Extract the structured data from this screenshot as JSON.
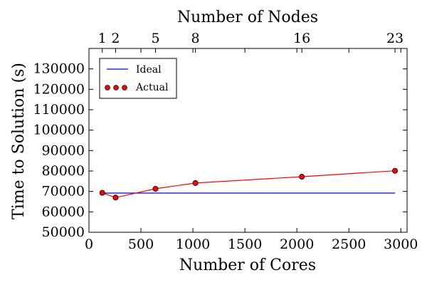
{
  "chart_data": {
    "type": "line",
    "xlabel": "Number of Cores",
    "ylabel": "Time to Solution (s)",
    "top_xlabel": "Number of Nodes",
    "xlim": [
      0,
      3060
    ],
    "ylim": [
      50000,
      140000
    ],
    "x_ticks": [
      {
        "value": 0,
        "label": "0"
      },
      {
        "value": 500,
        "label": "500"
      },
      {
        "value": 1000,
        "label": "1000"
      },
      {
        "value": 1500,
        "label": "1500"
      },
      {
        "value": 2000,
        "label": "2000"
      },
      {
        "value": 2500,
        "label": "2500"
      },
      {
        "value": 3000,
        "label": "3000"
      }
    ],
    "y_ticks": [
      {
        "value": 50000,
        "label": "50000"
      },
      {
        "value": 60000,
        "label": "60000"
      },
      {
        "value": 70000,
        "label": "70000"
      },
      {
        "value": 80000,
        "label": "80000"
      },
      {
        "value": 90000,
        "label": "90000"
      },
      {
        "value": 100000,
        "label": "100000"
      },
      {
        "value": 110000,
        "label": "110000"
      },
      {
        "value": 120000,
        "label": "120000"
      },
      {
        "value": 130000,
        "label": "130000"
      }
    ],
    "top_ticks": [
      {
        "value": 128,
        "label": "1"
      },
      {
        "value": 256,
        "label": "2"
      },
      {
        "value": 640,
        "label": "5"
      },
      {
        "value": 1024,
        "label": "8"
      },
      {
        "value": 2048,
        "label": "16"
      },
      {
        "value": 2944,
        "label": "23"
      }
    ],
    "series": [
      {
        "name": "Ideal",
        "color": "#0000ff",
        "style": "line",
        "x": [
          128,
          2944
        ],
        "y": [
          69200,
          69200
        ]
      },
      {
        "name": "Actual",
        "color": "#ff0000",
        "marker_fill": "#ff0000",
        "style": "line+markers",
        "x": [
          128,
          256,
          640,
          1024,
          2048,
          2944
        ],
        "y": [
          69300,
          67000,
          71300,
          74100,
          77200,
          80100
        ]
      }
    ],
    "legend_position": "top-left",
    "grid": false
  }
}
